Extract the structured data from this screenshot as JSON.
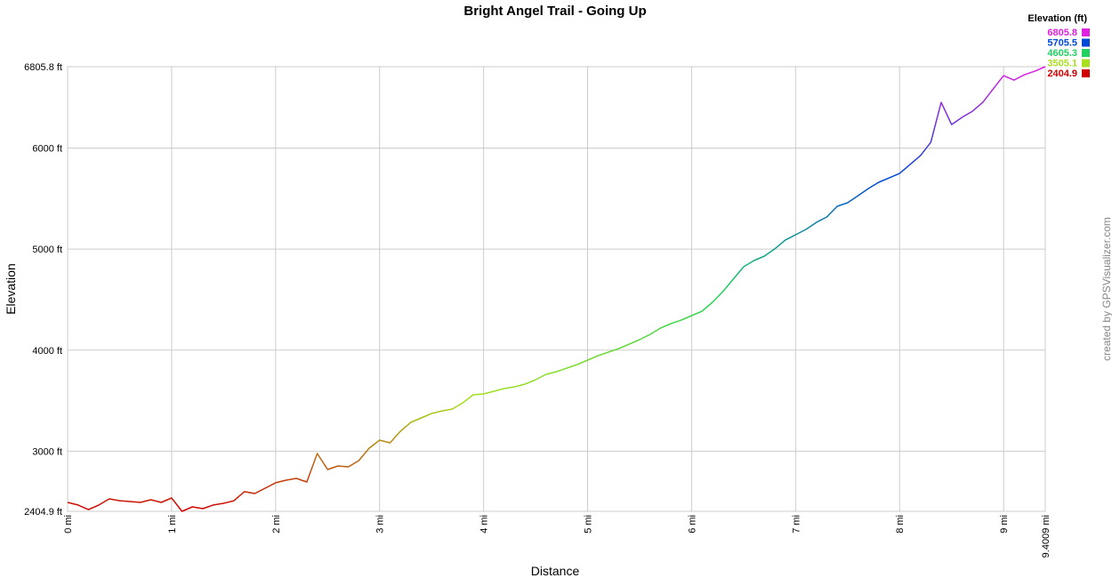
{
  "chart_data": {
    "type": "line",
    "title": "Bright Angel Trail - Going Up",
    "x_label": "Distance",
    "y_label": "Elevation",
    "credit": "created by GPSVisualizer.com",
    "legend_title": "Elevation (ft)",
    "legend": [
      {
        "value": 6805.8,
        "color": "#e020e0"
      },
      {
        "value": 5705.5,
        "color": "#0048d8"
      },
      {
        "value": 4605.3,
        "color": "#20d060"
      },
      {
        "value": 3505.1,
        "color": "#a8e020"
      },
      {
        "value": 2404.9,
        "color": "#d00000"
      }
    ],
    "xlim": [
      0,
      9.4009
    ],
    "ylim": [
      2404.9,
      6805.8
    ],
    "xticks": [
      {
        "value": 0,
        "label": "0 mi"
      },
      {
        "value": 1,
        "label": "1 mi"
      },
      {
        "value": 2,
        "label": "2 mi"
      },
      {
        "value": 3,
        "label": "3 mi"
      },
      {
        "value": 4,
        "label": "4 mi"
      },
      {
        "value": 5,
        "label": "5 mi"
      },
      {
        "value": 6,
        "label": "6 mi"
      },
      {
        "value": 7,
        "label": "7 mi"
      },
      {
        "value": 8,
        "label": "8 mi"
      },
      {
        "value": 9,
        "label": "9 mi"
      },
      {
        "value": 9.4009,
        "label": "9.4009 mi"
      }
    ],
    "yticks": [
      {
        "value": 2404.9,
        "label": "2404.9 ft"
      },
      {
        "value": 3000,
        "label": "3000 ft"
      },
      {
        "value": 4000,
        "label": "4000 ft"
      },
      {
        "value": 5000,
        "label": "5000 ft"
      },
      {
        "value": 6000,
        "label": "6000 ft"
      },
      {
        "value": 6805.8,
        "label": "6805.8 ft"
      }
    ],
    "grid": true,
    "x": [
      0,
      0.1,
      0.2,
      0.3,
      0.4,
      0.5,
      0.6,
      0.7,
      0.8,
      0.9,
      1.0,
      1.1,
      1.2,
      1.3,
      1.4,
      1.5,
      1.6,
      1.7,
      1.8,
      1.9,
      2.0,
      2.1,
      2.2,
      2.3,
      2.4,
      2.5,
      2.6,
      2.7,
      2.8,
      2.9,
      3.0,
      3.1,
      3.2,
      3.3,
      3.4,
      3.5,
      3.6,
      3.7,
      3.8,
      3.9,
      4.0,
      4.1,
      4.2,
      4.3,
      4.4,
      4.5,
      4.6,
      4.7,
      4.8,
      4.9,
      5.0,
      5.1,
      5.2,
      5.3,
      5.4,
      5.5,
      5.6,
      5.7,
      5.8,
      5.9,
      6.0,
      6.1,
      6.2,
      6.3,
      6.4,
      6.5,
      6.6,
      6.7,
      6.8,
      6.9,
      7.0,
      7.1,
      7.2,
      7.3,
      7.4,
      7.5,
      7.6,
      7.7,
      7.8,
      7.9,
      8.0,
      8.1,
      8.2,
      8.3,
      8.4,
      8.5,
      8.6,
      8.7,
      8.8,
      8.9,
      9.0,
      9.1,
      9.2,
      9.3,
      9.4009
    ],
    "values": [
      2493,
      2467,
      2422,
      2467,
      2528,
      2510,
      2502,
      2493,
      2519,
      2493,
      2537,
      2404.9,
      2449,
      2431,
      2467,
      2484,
      2510,
      2599,
      2581,
      2634,
      2687,
      2713,
      2731,
      2695,
      2977,
      2819,
      2854,
      2845,
      2907,
      3030,
      3109,
      3083,
      3197,
      3285,
      3329,
      3373,
      3399,
      3417,
      3479,
      3558,
      3567,
      3593,
      3620,
      3637,
      3664,
      3708,
      3760,
      3787,
      3822,
      3857,
      3901,
      3945,
      3980,
      4016,
      4060,
      4104,
      4156,
      4218,
      4262,
      4297,
      4341,
      4385,
      4473,
      4579,
      4702,
      4825,
      4887,
      4931,
      5002,
      5089,
      5142,
      5195,
      5265,
      5318,
      5424,
      5459,
      5529,
      5600,
      5662,
      5705,
      5749,
      5837,
      5925,
      6057,
      6453,
      6233,
      6304,
      6365,
      6453,
      6585,
      6717,
      6673,
      6726,
      6761,
      6805.8
    ]
  }
}
